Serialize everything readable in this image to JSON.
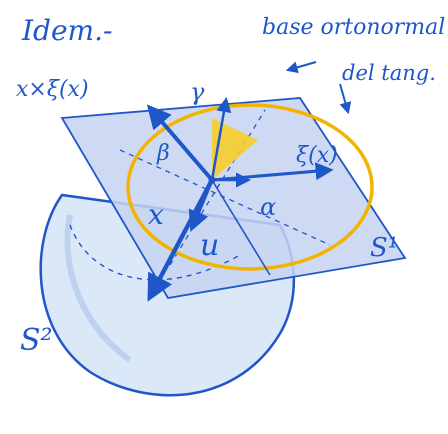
{
  "annotations": {
    "title": "Idem.-",
    "frame_line1": "base ortonormal",
    "frame_line2": "del tang.",
    "label_cross": "x×ξ(x)",
    "label_xi": "ξ(x)",
    "label_x": "x",
    "label_u": "u",
    "label_alpha": "α",
    "label_beta": "β",
    "label_gamma": "γ",
    "label_S1": "S¹",
    "label_S2": "S²"
  },
  "colors": {
    "ink": "#1f57c9",
    "sphere_fill": "#dbe8f7",
    "plane_fill": "#c5d3f1",
    "circle": "#f2b400",
    "yellow_sector": "#f7cc2a"
  },
  "icons": {
    "arrow": "arrow-icon"
  }
}
